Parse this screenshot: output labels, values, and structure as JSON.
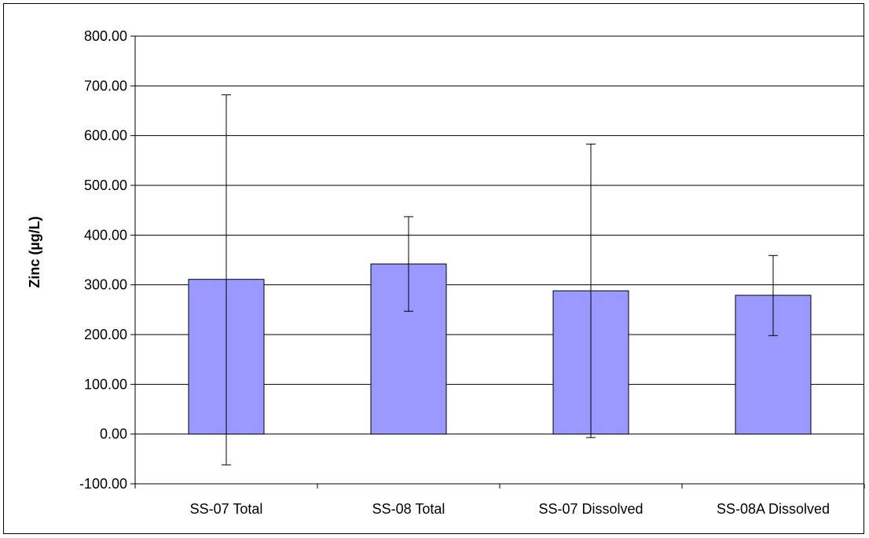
{
  "chart_data": {
    "type": "bar",
    "title": "",
    "xlabel": "",
    "ylabel": "Zinc (µg/L)",
    "categories": [
      "SS-07 Total",
      "SS-08 Total",
      "SS-07 Dissolved",
      "SS-08A Dissolved"
    ],
    "values": [
      311,
      342,
      288,
      279
    ],
    "error_bars": [
      {
        "low": -62,
        "high": 682
      },
      {
        "low": 247,
        "high": 437
      },
      {
        "low": -7,
        "high": 583
      },
      {
        "low": 198,
        "high": 359
      }
    ],
    "ylim": [
      -100,
      800
    ],
    "yticks": [
      -100,
      0,
      100,
      200,
      300,
      400,
      500,
      600,
      700,
      800
    ],
    "ytick_labels": [
      "-100.00",
      "0.00",
      "100.00",
      "200.00",
      "300.00",
      "400.00",
      "500.00",
      "600.00",
      "700.00",
      "800.00"
    ],
    "grid": true,
    "bar_color": "#9999FF",
    "bar_edge_color": "#000000",
    "legend": "none"
  }
}
